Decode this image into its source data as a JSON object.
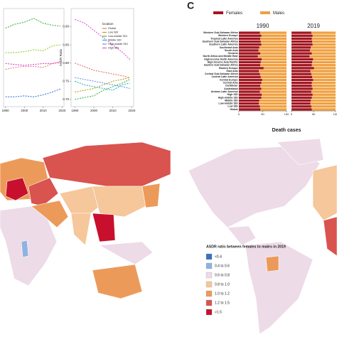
{
  "panel_label": "C",
  "chart_data": [
    {
      "type": "line",
      "x": [
        1990,
        1995,
        2000,
        2005,
        2010,
        2015,
        2019
      ],
      "xlim": [
        1989,
        2021
      ],
      "xticks": [
        1990,
        2000,
        2010,
        2020
      ],
      "ylim": [
        0,
        100
      ],
      "series": [
        {
          "color": "#3cb043",
          "values": [
            80,
            84,
            86,
            90,
            85,
            83,
            82
          ]
        },
        {
          "color": "#9acd32",
          "values": [
            55,
            55,
            56,
            58,
            57,
            62,
            63
          ]
        },
        {
          "color": "#d63ad6",
          "values": [
            44,
            43,
            42,
            43,
            44,
            44,
            45
          ]
        },
        {
          "color": "#f08080",
          "values": [
            38,
            40,
            41,
            41,
            40,
            44,
            46
          ]
        },
        {
          "color": "#3a7bd5",
          "values": [
            10,
            10,
            11,
            10,
            12,
            15,
            18
          ]
        }
      ]
    },
    {
      "type": "line",
      "ylabel": "ASDR Ratio",
      "legend_title": "location",
      "x": [
        1990,
        1995,
        2000,
        2005,
        2010,
        2015,
        2019
      ],
      "xlim": [
        1988,
        2021
      ],
      "xticks": [
        1990,
        2000,
        2010,
        2020
      ],
      "ylim": [
        0.68,
        0.95
      ],
      "yticks": [
        {
          "value": 0.7,
          "label": "0.70"
        },
        0.75,
        {
          "value": 0.8,
          "label": "0.80"
        },
        0.85,
        {
          "value": 0.9,
          "label": "0.90"
        }
      ],
      "series": [
        {
          "name": "Global",
          "color": "#e8736c",
          "values": [
            0.8,
            0.79,
            0.78,
            0.775,
            0.77,
            0.765,
            0.76
          ]
        },
        {
          "name": "Low SDI",
          "color": "#b5a019",
          "values": [
            0.72,
            0.725,
            0.73,
            0.74,
            0.75,
            0.755,
            0.76
          ]
        },
        {
          "name": "Low-middle SDI",
          "color": "#3fb54a",
          "values": [
            0.7,
            0.705,
            0.71,
            0.725,
            0.735,
            0.745,
            0.755
          ]
        },
        {
          "name": "Middle SDI",
          "color": "#2bb3c0",
          "values": [
            0.75,
            0.74,
            0.735,
            0.73,
            0.725,
            0.74,
            0.745
          ]
        },
        {
          "name": "High-middle SDI",
          "color": "#6f8ff0",
          "values": [
            0.76,
            0.755,
            0.75,
            0.745,
            0.74,
            0.735,
            0.73
          ]
        },
        {
          "name": "High SDI",
          "color": "#e357d6",
          "values": [
            0.92,
            0.91,
            0.89,
            0.87,
            0.85,
            0.83,
            0.81
          ]
        }
      ]
    },
    {
      "type": "bar",
      "title": "1990",
      "xlabel": "Death cases",
      "xlim": [
        0,
        100
      ],
      "xticks": [
        0,
        50,
        100
      ],
      "categories": [
        "Western Sub-Saharan Africa",
        "Western Europe",
        "Tropical Latin America",
        "Southern Sub-Saharan Africa",
        "Southern Latin America",
        "Southeast Asia",
        "South Asia",
        "Oceania",
        "North Africa and Middle East",
        "High-income North America",
        "High-income Asia Pacific",
        "Eastern Sub-Saharan Africa",
        "Eastern Europe",
        "East Asia",
        "Central Sub-Saharan Africa",
        "Central Latin America",
        "Central Europe",
        "Central Asia",
        "Caribbean",
        "Australasia",
        "Andean Latin America",
        "High SDI",
        "High-middle SDI",
        "Middle SDI",
        "Low-middle SDI",
        "Low SDI",
        "Global"
      ],
      "series": [
        {
          "name": "Females",
          "color": "#a31621",
          "values": [
            44,
            47,
            45,
            46,
            47,
            43,
            41,
            45,
            40,
            48,
            46,
            45,
            52,
            42,
            44,
            46,
            49,
            47,
            45,
            47,
            44,
            48,
            47,
            43,
            42,
            44,
            45
          ]
        },
        {
          "name": "Males",
          "color": "#f0a040",
          "values": [
            56,
            53,
            55,
            54,
            53,
            57,
            59,
            55,
            60,
            52,
            54,
            55,
            48,
            58,
            56,
            54,
            51,
            53,
            55,
            53,
            56,
            52,
            53,
            57,
            58,
            56,
            55
          ]
        }
      ]
    },
    {
      "type": "bar",
      "title": "2019",
      "xlim": [
        0,
        100
      ],
      "xticks": [
        0,
        50,
        100
      ],
      "series": [
        {
          "color": "#a31621",
          "values": [
            45,
            48,
            46,
            47,
            48,
            44,
            42,
            46,
            41,
            49,
            47,
            46,
            51,
            43,
            45,
            47,
            49,
            46,
            46,
            48,
            45,
            48,
            46,
            44,
            43,
            45,
            46
          ]
        },
        {
          "color": "#f0a040",
          "values": [
            55,
            52,
            54,
            53,
            52,
            56,
            58,
            54,
            59,
            51,
            53,
            54,
            49,
            57,
            55,
            53,
            51,
            54,
            54,
            52,
            55,
            52,
            54,
            56,
            57,
            55,
            54
          ]
        }
      ]
    }
  ],
  "map": {
    "legend_title": "ASDR ratio between females to males in 2019",
    "legend": [
      {
        "label": "<0.4",
        "color": "#3b6fc4"
      },
      {
        "label": "0.4 to 0.6",
        "color": "#8fb3e0"
      },
      {
        "label": "0.6 to 0.8",
        "color": "#eddbe8"
      },
      {
        "label": "0.8 to 1.0",
        "color": "#f5c79a"
      },
      {
        "label": "1.0 to 1.2",
        "color": "#ec9a5a"
      },
      {
        "label": "1.2 to 1.5",
        "color": "#d9534f"
      },
      {
        "label": ">1.5",
        "color": "#c8102e"
      }
    ]
  }
}
